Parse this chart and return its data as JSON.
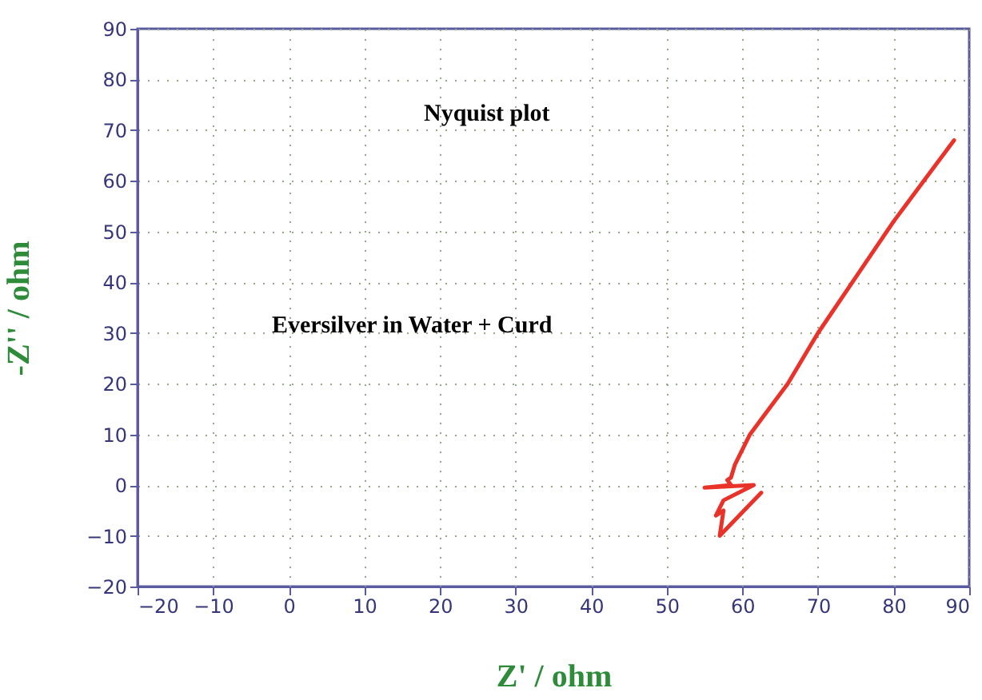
{
  "chart_data": {
    "type": "line",
    "xlabel": "Z' / ohm",
    "ylabel": "-Z'' / ohm",
    "annotations": [
      "Nyquist plot",
      "Eversilver in Water + Curd"
    ],
    "series": [
      {
        "color": "#e8322a",
        "x": [
          88,
          84,
          80,
          75,
          70,
          66,
          63,
          61,
          59,
          58.5,
          58,
          58.5,
          55,
          61.5,
          57.5,
          56.5,
          57.5,
          57,
          62.5
        ],
        "values": [
          68,
          60,
          52,
          41,
          30,
          20,
          14,
          10,
          4,
          1.5,
          1,
          0,
          -0.5,
          0,
          -3,
          -6,
          -5,
          -10,
          -1.5
        ]
      }
    ],
    "xlim": [
      -20,
      90
    ],
    "xticks": [
      -20,
      -10,
      0,
      10,
      20,
      30,
      40,
      50,
      60,
      70,
      80,
      90
    ],
    "ylim": [
      -20,
      90
    ],
    "yticks": [
      -20,
      -10,
      0,
      10,
      20,
      30,
      40,
      50,
      60,
      70,
      80,
      90
    ],
    "grid": true,
    "line_style": "solid",
    "marker": "none"
  }
}
